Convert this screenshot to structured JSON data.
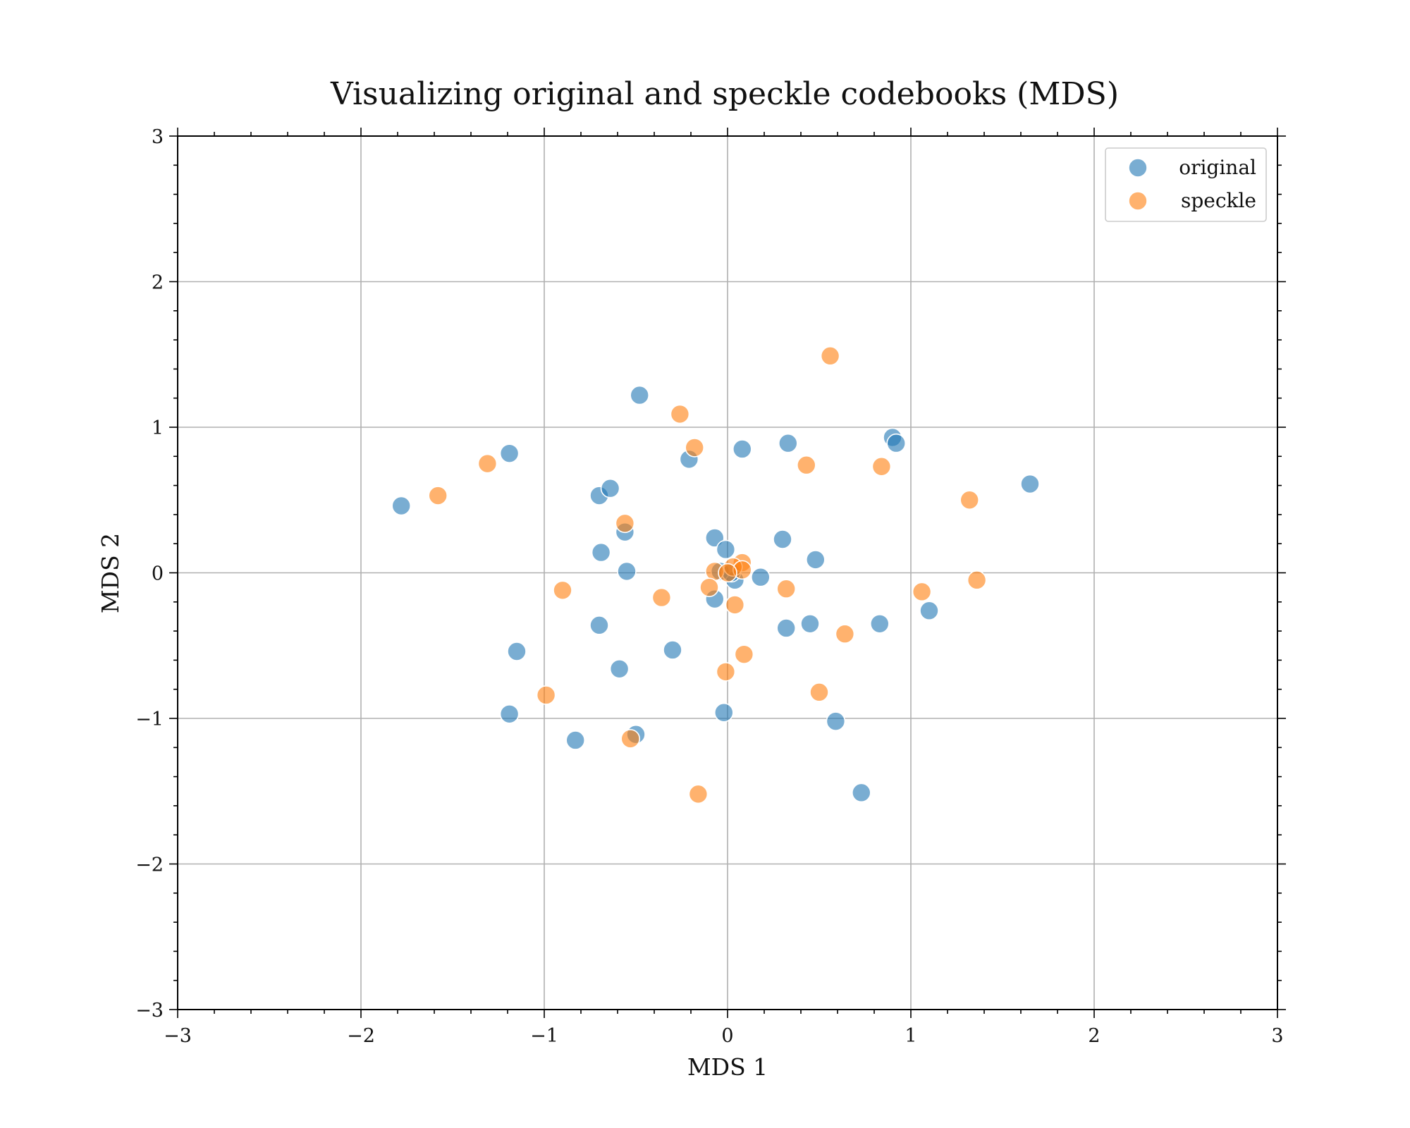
{
  "chart_data": {
    "type": "scatter",
    "title": "Visualizing original and speckle codebooks (MDS)",
    "xlabel": "MDS 1",
    "ylabel": "MDS 2",
    "xlim": [
      -3,
      3
    ],
    "ylim": [
      -3,
      3
    ],
    "xticks": [
      -3,
      -2,
      -1,
      0,
      1,
      2,
      3
    ],
    "yticks": [
      -3,
      -2,
      -1,
      0,
      1,
      2,
      3
    ],
    "xtick_labels": [
      "−3",
      "−2",
      "−1",
      "0",
      "1",
      "2",
      "3"
    ],
    "ytick_labels": [
      "−3",
      "−2",
      "−1",
      "0",
      "1",
      "2",
      "3"
    ],
    "grid": true,
    "legend_position": "top-right",
    "series": [
      {
        "name": "original",
        "color": "#1f77b4",
        "points": [
          [
            -1.78,
            0.46
          ],
          [
            -1.19,
            0.82
          ],
          [
            -0.48,
            1.22
          ],
          [
            -0.7,
            0.53
          ],
          [
            -0.64,
            0.58
          ],
          [
            -0.21,
            0.78
          ],
          [
            0.08,
            0.85
          ],
          [
            0.33,
            0.89
          ],
          [
            0.9,
            0.93
          ],
          [
            0.92,
            0.89
          ],
          [
            1.65,
            0.61
          ],
          [
            -0.56,
            0.28
          ],
          [
            -0.69,
            0.14
          ],
          [
            -0.55,
            0.01
          ],
          [
            -0.07,
            0.24
          ],
          [
            -0.01,
            0.16
          ],
          [
            0.3,
            0.23
          ],
          [
            0.48,
            0.09
          ],
          [
            0.18,
            -0.03
          ],
          [
            0.04,
            -0.05
          ],
          [
            -0.07,
            -0.18
          ],
          [
            -0.7,
            -0.36
          ],
          [
            0.32,
            -0.38
          ],
          [
            0.45,
            -0.35
          ],
          [
            0.83,
            -0.35
          ],
          [
            1.1,
            -0.26
          ],
          [
            -1.15,
            -0.54
          ],
          [
            -0.3,
            -0.53
          ],
          [
            -0.59,
            -0.66
          ],
          [
            -1.19,
            -0.97
          ],
          [
            -0.02,
            -0.96
          ],
          [
            0.59,
            -1.02
          ],
          [
            -0.83,
            -1.15
          ],
          [
            -0.5,
            -1.11
          ],
          [
            0.73,
            -1.51
          ],
          [
            -0.04,
            0.01
          ],
          [
            0.02,
            0.0
          ]
        ]
      },
      {
        "name": "speckle",
        "color": "#ff7f0e",
        "points": [
          [
            0.56,
            1.49
          ],
          [
            -0.26,
            1.09
          ],
          [
            -0.18,
            0.86
          ],
          [
            -1.31,
            0.75
          ],
          [
            -1.58,
            0.53
          ],
          [
            0.43,
            0.74
          ],
          [
            0.84,
            0.73
          ],
          [
            1.32,
            0.5
          ],
          [
            -0.56,
            0.34
          ],
          [
            0.08,
            0.07
          ],
          [
            0.03,
            0.04
          ],
          [
            -0.07,
            0.01
          ],
          [
            0.08,
            0.02
          ],
          [
            0.0,
            0.0
          ],
          [
            -0.1,
            -0.1
          ],
          [
            -0.9,
            -0.12
          ],
          [
            -0.36,
            -0.17
          ],
          [
            0.32,
            -0.11
          ],
          [
            1.06,
            -0.13
          ],
          [
            1.36,
            -0.05
          ],
          [
            0.04,
            -0.22
          ],
          [
            0.64,
            -0.42
          ],
          [
            0.09,
            -0.56
          ],
          [
            -0.01,
            -0.68
          ],
          [
            -0.99,
            -0.84
          ],
          [
            0.5,
            -0.82
          ],
          [
            -0.53,
            -1.14
          ],
          [
            -0.16,
            -1.52
          ]
        ]
      }
    ]
  }
}
